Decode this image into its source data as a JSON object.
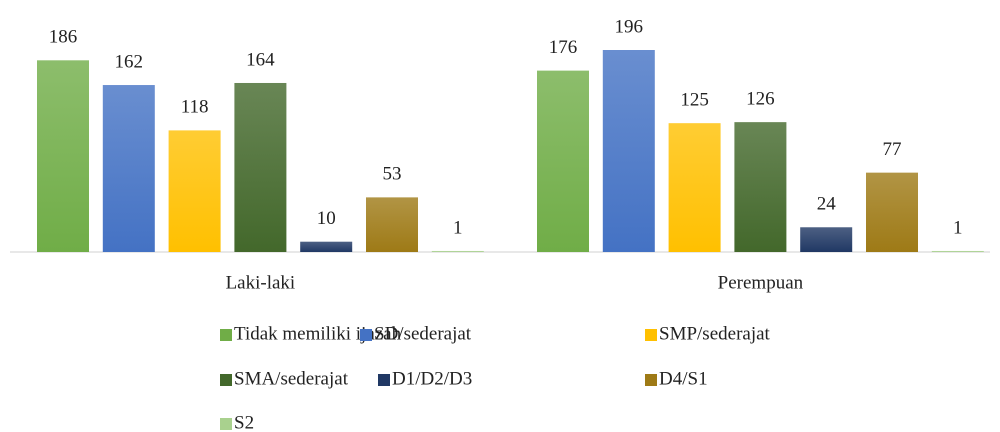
{
  "chart_data": {
    "type": "bar",
    "categories": [
      "Laki-laki",
      "Perempuan"
    ],
    "series": [
      {
        "name": "Tidak memiliki ijazah",
        "color": "#70ad47",
        "values": [
          186,
          176
        ]
      },
      {
        "name": "SD/sederajat",
        "color": "#4472c4",
        "values": [
          162,
          196
        ]
      },
      {
        "name": "SMP/sederajat",
        "color": "#ffc000",
        "values": [
          118,
          125
        ]
      },
      {
        "name": "SMA/sederajat",
        "color": "#43682b",
        "values": [
          164,
          126
        ]
      },
      {
        "name": "D1/D2/D3",
        "color": "#203864",
        "values": [
          10,
          24
        ]
      },
      {
        "name": "D4/S1",
        "color": "#9e7a16",
        "values": [
          53,
          77
        ]
      },
      {
        "name": "S2",
        "color": "#a9d18e",
        "values": [
          1,
          1
        ]
      }
    ]
  }
}
